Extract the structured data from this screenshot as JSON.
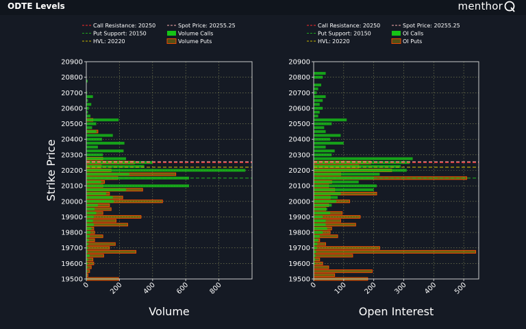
{
  "header": {
    "title": "ODTE Levels",
    "brand": "menthor"
  },
  "colors": {
    "call_resistance": "#ff2b2b",
    "put_support": "#1ea81e",
    "hvl": "#c9b800",
    "spot": "#ffb0b0",
    "calls": "#16c316",
    "puts_edge": "#ff4a00",
    "puts_fill": "#b3a000",
    "grid": "#8a8f5a",
    "axes": "#cccccc"
  },
  "chart_data": [
    {
      "type": "bar",
      "orientation": "horizontal",
      "ylabel": "Strike Price",
      "xlabel": "Volume",
      "xlim": [
        0,
        1000
      ],
      "ylim": [
        19500,
        20900
      ],
      "xticks": [
        0,
        200,
        400,
        600,
        800
      ],
      "yticks": [
        19500,
        19600,
        19700,
        19800,
        19900,
        20000,
        20100,
        20200,
        20300,
        20400,
        20500,
        20600,
        20700,
        20800,
        20900
      ],
      "legend": {
        "placement": "top",
        "entries": [
          {
            "label": "Call Resistance: 20250",
            "kind": "line",
            "color_key": "call_resistance"
          },
          {
            "label": "Spot Price: 20255.25",
            "kind": "line",
            "color_key": "spot"
          },
          {
            "label": "Put Support: 20150",
            "kind": "line",
            "color_key": "put_support"
          },
          {
            "label": "Volume Calls",
            "kind": "bar-calls"
          },
          {
            "label": "HVL: 20220",
            "kind": "line",
            "color_key": "hvl"
          },
          {
            "label": "Volume Puts",
            "kind": "bar-puts"
          }
        ]
      },
      "lines": [
        {
          "name": "Call Resistance",
          "value": 20250,
          "color_key": "call_resistance"
        },
        {
          "name": "Spot Price",
          "value": 20255.25,
          "color_key": "spot"
        },
        {
          "name": "HVL",
          "value": 20220,
          "color_key": "hvl"
        },
        {
          "name": "Put Support",
          "value": 20150,
          "color_key": "put_support"
        }
      ],
      "series": [
        {
          "name": "Volume Calls",
          "strikes": [
            20775,
            20700,
            20675,
            20650,
            20625,
            20600,
            20575,
            20550,
            20525,
            20500,
            20475,
            20450,
            20425,
            20400,
            20375,
            20350,
            20325,
            20300,
            20275,
            20250,
            20225,
            20200,
            20175,
            20150,
            20125,
            20100,
            20075,
            20050,
            20025,
            20000,
            19975,
            19950,
            19925,
            19900,
            19875,
            19850,
            19825,
            19800,
            19775,
            19750,
            19725,
            19700,
            19675,
            19650,
            19625,
            19600,
            19575,
            19550,
            19525,
            19500
          ],
          "values": [
            8,
            5,
            40,
            10,
            30,
            15,
            10,
            25,
            195,
            60,
            35,
            60,
            160,
            95,
            230,
            70,
            225,
            100,
            240,
            400,
            350,
            960,
            260,
            620,
            90,
            620,
            240,
            120,
            160,
            165,
            70,
            50,
            60,
            45,
            40,
            45,
            30,
            25,
            20,
            15,
            12,
            10,
            8,
            20,
            10,
            8,
            6,
            5,
            4,
            3
          ]
        },
        {
          "name": "Volume Puts",
          "strikes": [
            20525,
            20450,
            20275,
            20250,
            20225,
            20200,
            20175,
            20150,
            20125,
            20100,
            20075,
            20050,
            20025,
            20000,
            19975,
            19950,
            19925,
            19900,
            19875,
            19850,
            19825,
            19800,
            19775,
            19750,
            19725,
            19700,
            19675,
            19650,
            19625,
            19600,
            19575,
            19550,
            19525,
            19500
          ],
          "values": [
            40,
            70,
            100,
            290,
            90,
            150,
            540,
            190,
            110,
            100,
            340,
            140,
            220,
            460,
            140,
            150,
            100,
            330,
            180,
            250,
            45,
            50,
            100,
            50,
            175,
            140,
            300,
            105,
            40,
            45,
            30,
            20,
            10,
            195
          ]
        }
      ]
    },
    {
      "type": "bar",
      "orientation": "horizontal",
      "ylabel": "",
      "xlabel": "Open Interest",
      "xlim": [
        0,
        550
      ],
      "ylim": [
        19500,
        20900
      ],
      "xticks": [
        0,
        100,
        200,
        300,
        400,
        500
      ],
      "yticks": [
        19500,
        19600,
        19700,
        19800,
        19900,
        20000,
        20100,
        20200,
        20300,
        20400,
        20500,
        20600,
        20700,
        20800,
        20900
      ],
      "legend": {
        "placement": "top",
        "entries": [
          {
            "label": "Call Resistance: 20250",
            "kind": "line",
            "color_key": "call_resistance"
          },
          {
            "label": "Spot Price: 20255.25",
            "kind": "line",
            "color_key": "spot"
          },
          {
            "label": "Put Support: 20150",
            "kind": "line",
            "color_key": "put_support"
          },
          {
            "label": "OI Calls",
            "kind": "bar-calls"
          },
          {
            "label": "HVL: 20220",
            "kind": "line",
            "color_key": "hvl"
          },
          {
            "label": "OI Puts",
            "kind": "bar-puts"
          }
        ]
      },
      "lines": [
        {
          "name": "Call Resistance",
          "value": 20250,
          "color_key": "call_resistance"
        },
        {
          "name": "Spot Price",
          "value": 20255.25,
          "color_key": "spot"
        },
        {
          "name": "HVL",
          "value": 20220,
          "color_key": "hvl"
        },
        {
          "name": "Put Support",
          "value": 20150,
          "color_key": "put_support"
        }
      ],
      "series": [
        {
          "name": "OI Calls",
          "strikes": [
            20825,
            20800,
            20750,
            20725,
            20700,
            20675,
            20650,
            20625,
            20600,
            20575,
            20550,
            20525,
            20500,
            20475,
            20450,
            20425,
            20400,
            20375,
            20350,
            20325,
            20300,
            20275,
            20250,
            20225,
            20200,
            20175,
            20150,
            20125,
            20100,
            20075,
            20050,
            20025,
            20000,
            19975,
            19950,
            19925,
            19900,
            19875,
            19850,
            19825,
            19800,
            19775,
            19750,
            19725,
            19700,
            19675,
            19650,
            19625,
            19600
          ],
          "values": [
            40,
            30,
            25,
            15,
            10,
            40,
            30,
            20,
            30,
            20,
            15,
            110,
            60,
            35,
            40,
            90,
            55,
            100,
            40,
            70,
            60,
            330,
            320,
            290,
            310,
            220,
            200,
            150,
            210,
            200,
            90,
            80,
            75,
            60,
            45,
            55,
            30,
            40,
            40,
            45,
            30,
            20,
            15,
            12,
            10,
            8,
            6,
            5,
            4
          ]
        },
        {
          "name": "OI Puts",
          "strikes": [
            20250,
            20225,
            20200,
            20175,
            20150,
            20125,
            20100,
            20075,
            20050,
            20025,
            20000,
            19975,
            19950,
            19925,
            19900,
            19875,
            19850,
            19825,
            19800,
            19775,
            19750,
            19725,
            19700,
            19675,
            19650,
            19625,
            19600,
            19575,
            19550,
            19525,
            19500
          ],
          "values": [
            190,
            150,
            260,
            90,
            510,
            60,
            50,
            70,
            210,
            55,
            120,
            50,
            40,
            95,
            155,
            90,
            140,
            60,
            55,
            80,
            20,
            40,
            220,
            540,
            130,
            20,
            30,
            50,
            195,
            70,
            180
          ]
        }
      ]
    }
  ]
}
